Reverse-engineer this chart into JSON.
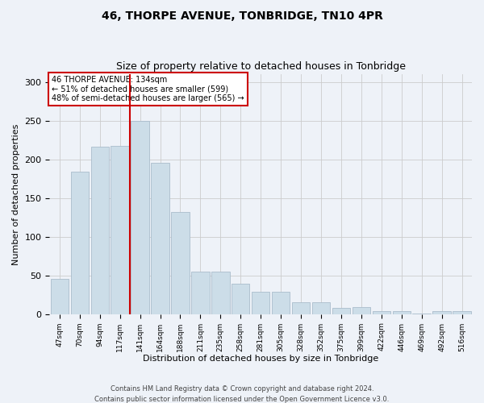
{
  "title1": "46, THORPE AVENUE, TONBRIDGE, TN10 4PR",
  "title2": "Size of property relative to detached houses in Tonbridge",
  "xlabel": "Distribution of detached houses by size in Tonbridge",
  "ylabel": "Number of detached properties",
  "annotation_line1": "46 THORPE AVENUE: 134sqm",
  "annotation_line2": "← 51% of detached houses are smaller (599)",
  "annotation_line3": "48% of semi-detached houses are larger (565) →",
  "bar_labels": [
    "47sqm",
    "70sqm",
    "94sqm",
    "117sqm",
    "141sqm",
    "164sqm",
    "188sqm",
    "211sqm",
    "235sqm",
    "258sqm",
    "281sqm",
    "305sqm",
    "328sqm",
    "352sqm",
    "375sqm",
    "399sqm",
    "422sqm",
    "446sqm",
    "469sqm",
    "492sqm",
    "516sqm"
  ],
  "bar_values": [
    46,
    184,
    216,
    217,
    250,
    195,
    132,
    55,
    55,
    39,
    29,
    29,
    15,
    15,
    8,
    9,
    4,
    4,
    1,
    4,
    4
  ],
  "property_line_x": 3.5,
  "bar_color": "#ccdde8",
  "bar_edge_color": "#aabccc",
  "line_color": "#cc0000",
  "bg_color": "#eef2f8",
  "grid_color": "#cccccc",
  "annotation_box_facecolor": "#ffffff",
  "annotation_border_color": "#cc0000",
  "footer_text": "Contains HM Land Registry data © Crown copyright and database right 2024.\nContains public sector information licensed under the Open Government Licence v3.0.",
  "ylim_max": 310,
  "title1_fontsize": 10,
  "title2_fontsize": 9
}
